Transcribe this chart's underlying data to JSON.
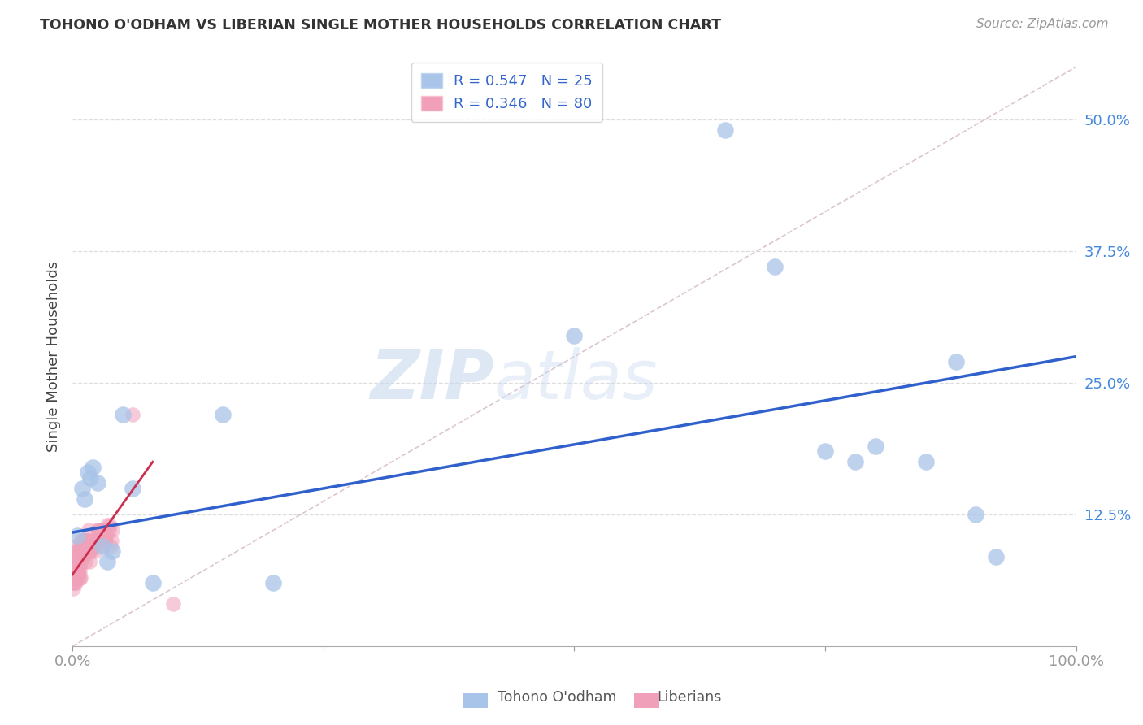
{
  "title": "TOHONO O'ODHAM VS LIBERIAN SINGLE MOTHER HOUSEHOLDS CORRELATION CHART",
  "source": "Source: ZipAtlas.com",
  "ylabel": "Single Mother Households",
  "xlim": [
    0,
    1.0
  ],
  "ylim": [
    0,
    0.55
  ],
  "xticks": [
    0.0,
    0.25,
    0.5,
    0.75,
    1.0
  ],
  "xticklabels": [
    "0.0%",
    "",
    "",
    "",
    "100.0%"
  ],
  "yticks": [
    0.0,
    0.125,
    0.25,
    0.375,
    0.5
  ],
  "yticklabels": [
    "",
    "12.5%",
    "25.0%",
    "37.5%",
    "50.0%"
  ],
  "tohono_color": "#a8c4e8",
  "liberian_color": "#f0a0b8",
  "trend_tohono_color": "#3060cc",
  "trend_liberian_color": "#cc3050",
  "diagonal_color": "#d8c0c8",
  "watermark_zip": "ZIP",
  "watermark_atlas": "atlas",
  "tohono_x": [
    0.005,
    0.01,
    0.012,
    0.015,
    0.018,
    0.02,
    0.025,
    0.03,
    0.035,
    0.04,
    0.05,
    0.06,
    0.08,
    0.15,
    0.2,
    0.5,
    0.65,
    0.7,
    0.75,
    0.78,
    0.8,
    0.85,
    0.88,
    0.9,
    0.92
  ],
  "tohono_y": [
    0.105,
    0.15,
    0.14,
    0.165,
    0.16,
    0.17,
    0.155,
    0.095,
    0.08,
    0.09,
    0.22,
    0.15,
    0.06,
    0.22,
    0.06,
    0.295,
    0.49,
    0.36,
    0.185,
    0.175,
    0.19,
    0.175,
    0.27,
    0.125,
    0.085
  ],
  "liberian_x": [
    0.001,
    0.002,
    0.003,
    0.004,
    0.005,
    0.006,
    0.007,
    0.008,
    0.009,
    0.01,
    0.011,
    0.012,
    0.013,
    0.014,
    0.015,
    0.016,
    0.017,
    0.018,
    0.019,
    0.02,
    0.021,
    0.022,
    0.023,
    0.024,
    0.025,
    0.026,
    0.027,
    0.028,
    0.029,
    0.03,
    0.031,
    0.032,
    0.033,
    0.034,
    0.035,
    0.036,
    0.037,
    0.038,
    0.039,
    0.04,
    0.001,
    0.002,
    0.003,
    0.004,
    0.005,
    0.006,
    0.007,
    0.008,
    0.009,
    0.01,
    0.011,
    0.012,
    0.013,
    0.014,
    0.015,
    0.016,
    0.017,
    0.018,
    0.019,
    0.02,
    0.002,
    0.003,
    0.004,
    0.005,
    0.006,
    0.007,
    0.008,
    0.009,
    0.01,
    0.011,
    0.001,
    0.002,
    0.003,
    0.004,
    0.005,
    0.006,
    0.007,
    0.008,
    0.06,
    0.1
  ],
  "liberian_y": [
    0.06,
    0.065,
    0.075,
    0.08,
    0.085,
    0.07,
    0.065,
    0.09,
    0.1,
    0.085,
    0.095,
    0.1,
    0.08,
    0.09,
    0.1,
    0.11,
    0.08,
    0.09,
    0.095,
    0.095,
    0.1,
    0.1,
    0.09,
    0.1,
    0.11,
    0.11,
    0.1,
    0.11,
    0.11,
    0.095,
    0.1,
    0.1,
    0.1,
    0.105,
    0.115,
    0.11,
    0.115,
    0.095,
    0.1,
    0.11,
    0.07,
    0.08,
    0.08,
    0.09,
    0.095,
    0.09,
    0.095,
    0.09,
    0.1,
    0.095,
    0.1,
    0.095,
    0.1,
    0.095,
    0.1,
    0.09,
    0.095,
    0.09,
    0.095,
    0.1,
    0.065,
    0.07,
    0.07,
    0.075,
    0.08,
    0.075,
    0.08,
    0.085,
    0.085,
    0.085,
    0.055,
    0.06,
    0.06,
    0.065,
    0.07,
    0.065,
    0.07,
    0.065,
    0.22,
    0.04
  ],
  "trend_tohono_x0": 0.0,
  "trend_tohono_x1": 1.0,
  "trend_tohono_y0": 0.108,
  "trend_tohono_y1": 0.275,
  "trend_liberian_x0": 0.0,
  "trend_liberian_x1": 0.08,
  "trend_liberian_y0": 0.068,
  "trend_liberian_y1": 0.175
}
